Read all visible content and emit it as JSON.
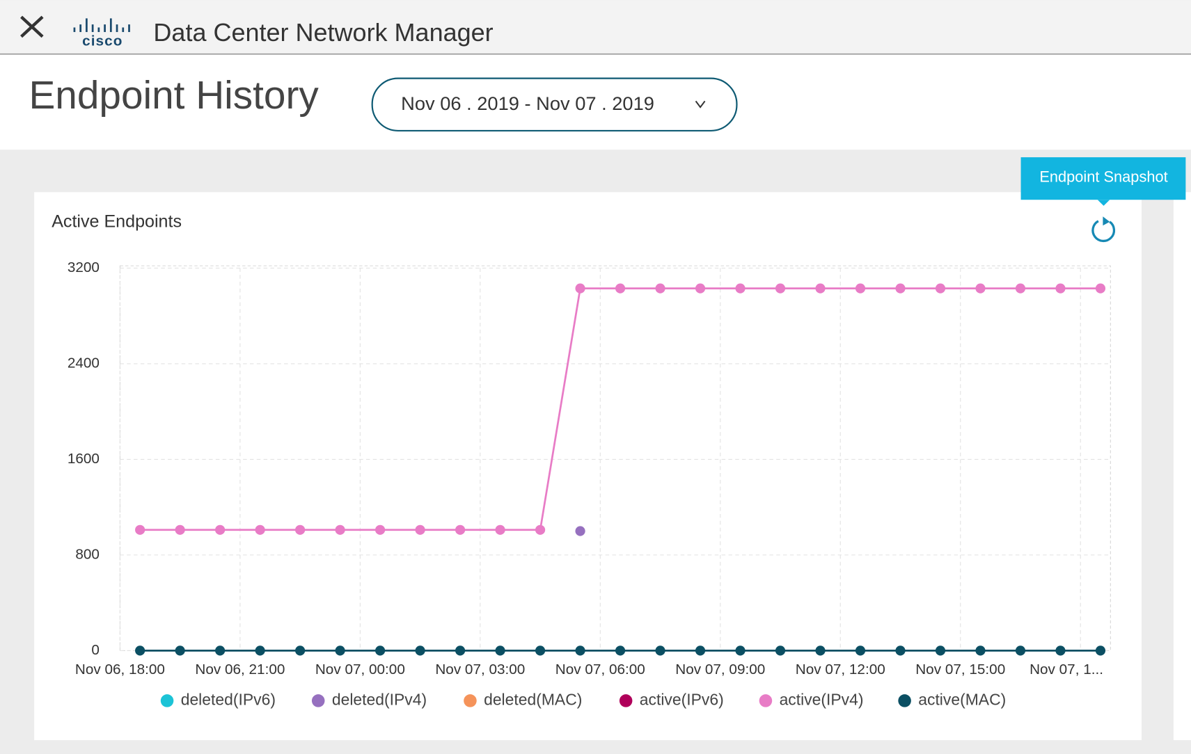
{
  "header": {
    "brand": "cisco",
    "app_name": "Data Center Network Manager"
  },
  "page": {
    "title": "Endpoint History",
    "date_range": "Nov 06 . 2019 - Nov 07 . 2019",
    "tooltip": "Endpoint Snapshot"
  },
  "chart_data": {
    "type": "line",
    "title": "Active Endpoints",
    "x": [
      "11-06 18:30",
      "11-06 19:30",
      "11-06 20:30",
      "11-06 21:30",
      "11-06 22:30",
      "11-06 23:30",
      "11-07 00:30",
      "11-07 01:30",
      "11-07 02:30",
      "11-07 03:30",
      "11-07 04:30",
      "11-07 05:30",
      "11-07 06:30",
      "11-07 07:30",
      "11-07 08:30",
      "11-07 09:30",
      "11-07 10:30",
      "11-07 11:30",
      "11-07 12:30",
      "11-07 13:30",
      "11-07 14:30",
      "11-07 15:30",
      "11-07 16:30",
      "11-07 17:30",
      "11-07 18:30"
    ],
    "xlim": [
      "11-06 18:00",
      "11-07 18:45"
    ],
    "xticks": [
      {
        "value": "11-06 18:00",
        "label": "Nov 06, 18:00"
      },
      {
        "value": "11-06 21:00",
        "label": "Nov 06, 21:00"
      },
      {
        "value": "11-07 00:00",
        "label": "Nov 07, 00:00"
      },
      {
        "value": "11-07 03:00",
        "label": "Nov 07, 03:00"
      },
      {
        "value": "11-07 06:00",
        "label": "Nov 07, 06:00"
      },
      {
        "value": "11-07 09:00",
        "label": "Nov 07, 09:00"
      },
      {
        "value": "11-07 12:00",
        "label": "Nov 07, 12:00"
      },
      {
        "value": "11-07 15:00",
        "label": "Nov 07, 15:00"
      },
      {
        "value": "11-07 18:00",
        "label": "Nov 07, 1..."
      }
    ],
    "ylim": [
      0,
      3200
    ],
    "yticks": [
      0,
      800,
      1600,
      2400,
      3200
    ],
    "grid": true,
    "legend": "bottom",
    "series": [
      {
        "name": "deleted(IPv6)",
        "color": "#1cc3d6",
        "values": [
          null,
          null,
          null,
          null,
          null,
          null,
          null,
          null,
          null,
          null,
          null,
          null,
          null,
          null,
          null,
          null,
          null,
          null,
          null,
          null,
          null,
          null,
          null,
          null,
          null
        ]
      },
      {
        "name": "deleted(IPv4)",
        "color": "#9670bf",
        "values": [
          null,
          null,
          null,
          null,
          null,
          null,
          null,
          null,
          null,
          null,
          null,
          1000,
          null,
          null,
          null,
          null,
          null,
          null,
          null,
          null,
          null,
          null,
          null,
          null,
          null
        ]
      },
      {
        "name": "deleted(MAC)",
        "color": "#f5935a",
        "values": [
          null,
          null,
          null,
          null,
          null,
          null,
          null,
          null,
          null,
          null,
          null,
          null,
          null,
          null,
          null,
          null,
          null,
          null,
          null,
          null,
          null,
          null,
          null,
          null,
          null
        ]
      },
      {
        "name": "active(IPv6)",
        "color": "#b0005a",
        "values": [
          null,
          null,
          null,
          null,
          null,
          null,
          null,
          null,
          null,
          null,
          null,
          null,
          null,
          null,
          null,
          null,
          null,
          null,
          null,
          null,
          null,
          null,
          null,
          null,
          null
        ]
      },
      {
        "name": "active(IPv4)",
        "color": "#e87cc6",
        "values": [
          1010,
          1010,
          1010,
          1010,
          1010,
          1010,
          1010,
          1010,
          1010,
          1010,
          1010,
          3030,
          3030,
          3030,
          3030,
          3030,
          3030,
          3030,
          3030,
          3030,
          3030,
          3030,
          3030,
          3030,
          3030
        ]
      },
      {
        "name": "active(MAC)",
        "color": "#0b4f63",
        "values": [
          0,
          0,
          0,
          0,
          0,
          0,
          0,
          0,
          0,
          0,
          0,
          0,
          0,
          0,
          0,
          0,
          0,
          0,
          0,
          0,
          0,
          0,
          0,
          0,
          0
        ]
      }
    ]
  }
}
